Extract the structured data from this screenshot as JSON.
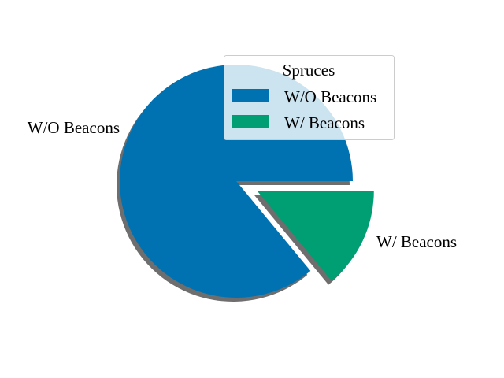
{
  "chart_data": {
    "type": "pie",
    "title": "",
    "categories": [
      "W/O Beacons",
      "W/ Beacons"
    ],
    "values": [
      86,
      14
    ],
    "colors": [
      "#0072b2",
      "#009e73"
    ],
    "shadow_color": "#555555",
    "exploded": [
      false,
      true
    ],
    "start_angle_deg": 0,
    "direction": "counterclockwise",
    "slice_labels": [
      "W/O Beacons",
      "W/ Beacons"
    ],
    "legend": {
      "title": "Spruces",
      "entries": [
        "W/O Beacons",
        "W/ Beacons"
      ],
      "placement": "upper-right"
    }
  }
}
